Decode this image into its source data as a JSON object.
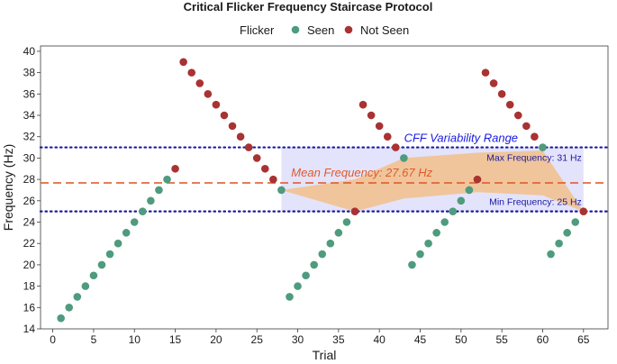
{
  "chart_data": {
    "type": "scatter",
    "title": "Critical Flicker Frequency Staircase Protocol",
    "xlabel": "Trial",
    "ylabel": "Frequency (Hz)",
    "xlim": [
      -1.5,
      68
    ],
    "ylim": [
      14,
      40.5
    ],
    "xticks": [
      0,
      5,
      10,
      15,
      20,
      25,
      30,
      35,
      40,
      45,
      50,
      55,
      60,
      65
    ],
    "yticks": [
      14,
      16,
      18,
      20,
      22,
      24,
      26,
      28,
      30,
      32,
      34,
      36,
      38,
      40
    ],
    "x_tick_labels": [
      "0",
      "5",
      "10",
      "15",
      "20",
      "25",
      "30",
      "35",
      "40",
      "45",
      "50",
      "55",
      "60",
      "65"
    ],
    "y_tick_labels": [
      "14",
      "16",
      "18",
      "20",
      "22",
      "24",
      "26",
      "28",
      "30",
      "32",
      "34",
      "36",
      "38",
      "40"
    ],
    "legend": {
      "title": "Flicker",
      "position": "top",
      "entries": [
        {
          "label": "Seen",
          "color": "#4e9b7e"
        },
        {
          "label": "Not Seen",
          "color": "#a93232"
        }
      ]
    },
    "series": [
      {
        "name": "Seen",
        "color": "#4e9b7e",
        "x": [
          1,
          2,
          3,
          4,
          5,
          6,
          7,
          8,
          9,
          10,
          11,
          12,
          13,
          14,
          28,
          29,
          30,
          31,
          32,
          33,
          34,
          35,
          36,
          43,
          44,
          45,
          46,
          47,
          48,
          49,
          50,
          51,
          60,
          61,
          62,
          63,
          64
        ],
        "y": [
          15,
          16,
          17,
          18,
          19,
          20,
          21,
          22,
          23,
          24,
          25,
          26,
          27,
          28,
          27,
          17,
          18,
          19,
          20,
          21,
          22,
          23,
          24,
          30,
          20,
          21,
          22,
          23,
          24,
          25,
          26,
          27,
          31,
          21,
          22,
          23,
          24
        ]
      },
      {
        "name": "Not Seen",
        "color": "#a93232",
        "x": [
          15,
          16,
          17,
          18,
          19,
          20,
          21,
          22,
          23,
          24,
          25,
          26,
          27,
          37,
          38,
          39,
          40,
          41,
          42,
          52,
          53,
          54,
          55,
          56,
          57,
          58,
          59,
          65
        ],
        "y": [
          29,
          39,
          38,
          37,
          36,
          35,
          34,
          33,
          32,
          31,
          30,
          29,
          28,
          25,
          35,
          34,
          33,
          32,
          31,
          28,
          38,
          37,
          36,
          35,
          34,
          33,
          32,
          25
        ]
      }
    ],
    "reference_lines": [
      {
        "y": 31,
        "color": "#1a1aa0",
        "style": "dotted",
        "label": "Max Frequency: 31 Hz"
      },
      {
        "y": 25,
        "color": "#1a1aa0",
        "style": "dotted",
        "label": "Min Frequency: 25 Hz"
      },
      {
        "y": 27.67,
        "color": "#e05a2a",
        "style": "dashed",
        "label": "Mean Frequency: 27.67 Hz"
      }
    ],
    "variability_band": {
      "x_from": 28,
      "x_to": 65,
      "y_from": 25,
      "y_to": 31,
      "label": "CFF Variability Range",
      "color": "#1a1ae0"
    },
    "reversal_envelope": {
      "color": "#f2c08a",
      "upper": [
        [
          28,
          27
        ],
        [
          37,
          28
        ],
        [
          43,
          30
        ],
        [
          52,
          30.5
        ],
        [
          60,
          30.7
        ],
        [
          65,
          25
        ]
      ],
      "lower": [
        [
          65,
          25
        ],
        [
          60,
          26.5
        ],
        [
          52,
          26.8
        ],
        [
          43,
          26.2
        ],
        [
          37,
          25
        ],
        [
          28,
          27
        ]
      ]
    }
  }
}
